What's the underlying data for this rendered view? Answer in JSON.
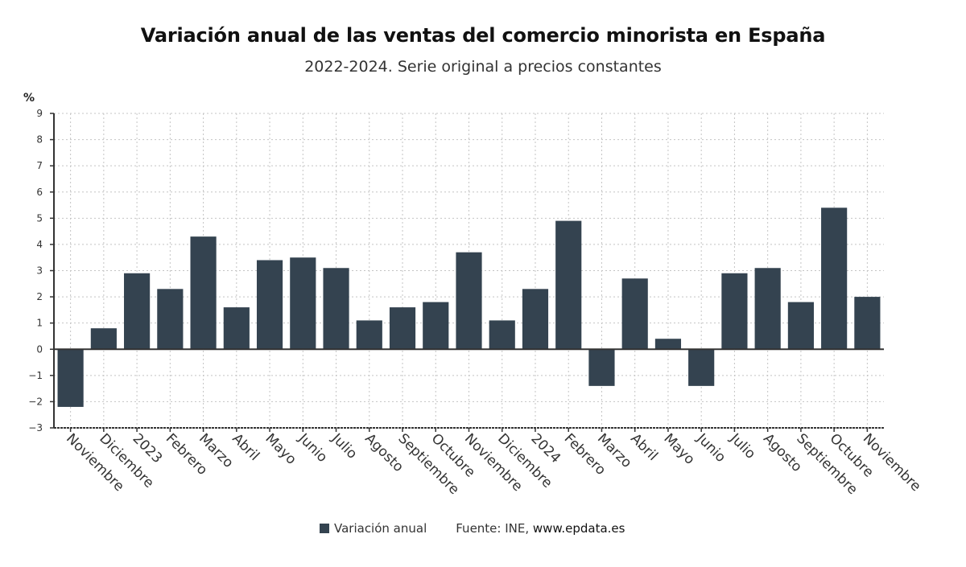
{
  "chart_data": {
    "type": "bar",
    "title": "Variación anual de las ventas del comercio minorista en España",
    "subtitle": "2022-2024. Serie original a precios constantes",
    "ylabel": "%",
    "xlabel": "",
    "ylim": [
      -3,
      9
    ],
    "yticks": [
      9,
      8,
      7,
      6,
      5,
      4,
      3,
      2,
      1,
      0,
      -1,
      -2,
      -3
    ],
    "ytick_labels": [
      "9",
      "8",
      "7",
      "6",
      "5",
      "4",
      "3",
      "2",
      "1",
      "0",
      "−1",
      "−2",
      "−3"
    ],
    "grid": true,
    "legend_position": "bottom-center",
    "categories": [
      "Noviembre",
      "Diciembre",
      "2023",
      "Febrero",
      "Marzo",
      "Abril",
      "Mayo",
      "Junio",
      "Julio",
      "Agosto",
      "Septiembre",
      "Octubre",
      "Noviembre",
      "Diciembre",
      "2024",
      "Febrero",
      "Marzo",
      "Abril",
      "Mayo",
      "Junio",
      "Julio",
      "Agosto",
      "Septiembre",
      "Octubre",
      "Noviembre"
    ],
    "series": [
      {
        "name": "Variación anual",
        "color": "#344350",
        "values": [
          -2.2,
          0.8,
          2.9,
          2.3,
          4.3,
          1.6,
          3.4,
          3.5,
          3.1,
          1.1,
          1.6,
          1.8,
          3.7,
          1.1,
          2.3,
          4.9,
          -1.4,
          2.7,
          0.4,
          -1.4,
          2.9,
          3.1,
          1.8,
          5.4,
          2.0
        ]
      }
    ]
  },
  "legend": {
    "series_label": "Variación anual",
    "source_prefix": "Fuente: INE,",
    "source_link": "www.epdata.es"
  }
}
